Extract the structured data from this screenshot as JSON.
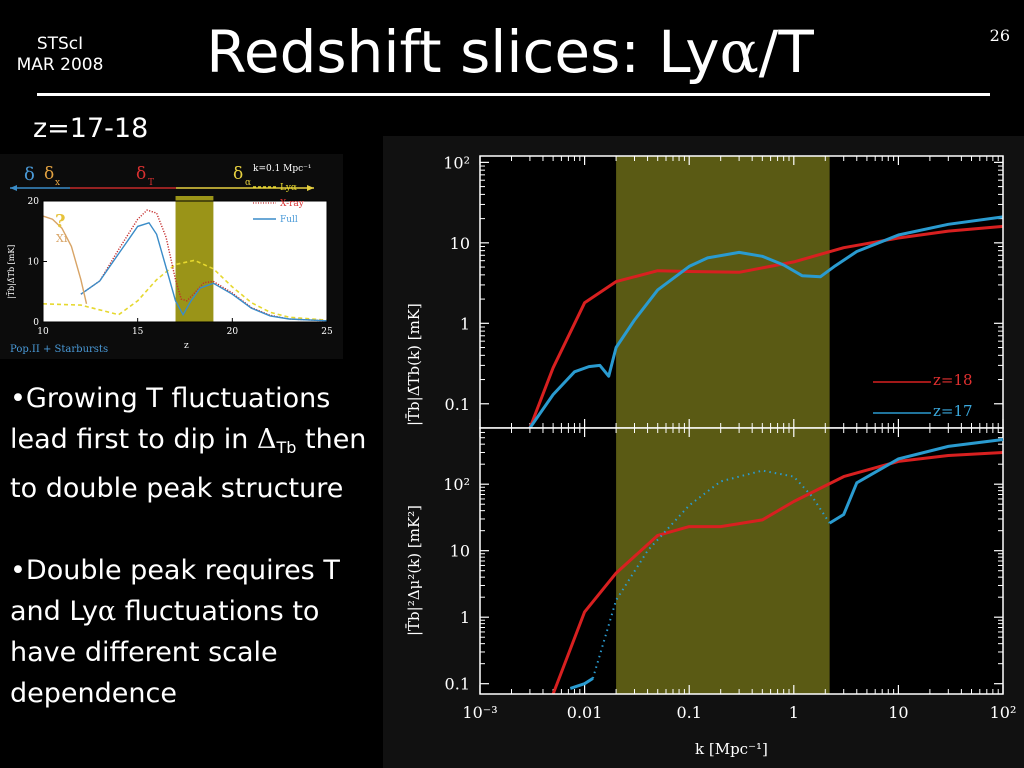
{
  "header": {
    "org_line1": "STScI",
    "org_line2": "MAR 2008",
    "title_prefix": "Redshift slices: Ly",
    "title_greek": "α",
    "title_suffix": "/T",
    "slide_number": "26"
  },
  "subtitle": "z=17-18",
  "bullets": {
    "b1_text1": "•Growing T fluctuations lead first to dip in ",
    "b1_delta": "Δ",
    "b1_sub": "Tb",
    "b1_text2": " then to double peak structure",
    "b2_text1": "•Double peak requires T and Ly",
    "b2_greek": "α",
    "b2_text2": " fluctuations to have different scale dependence"
  },
  "inset": {
    "caption": "Pop.II + Starbursts",
    "legend_k": "k=0.1 Mpc⁻¹",
    "xlabel": "z",
    "ylabel": "|T̄b|Δ̄Tb [mK]",
    "question_mark": "?",
    "xi_label": "Xi",
    "delta_labels": [
      "δ",
      "δ",
      "δ",
      "δ"
    ],
    "delta_subs": [
      "",
      "x",
      "T",
      "α"
    ]
  },
  "colors": {
    "z18": "#d82020",
    "z17": "#2a9bd0",
    "band": "#6a6a18",
    "lya": "#e6d82e",
    "xray": "#c42a2a",
    "full": "#3a8cc8",
    "xi": "#d8a466"
  },
  "chart_data": [
    {
      "type": "line",
      "ylabel": "|T̄b|Δ̄Tb(k) [mK]",
      "xscale": "log",
      "yscale": "log",
      "xlim": [
        0.001,
        100
      ],
      "ylim": [
        0.05,
        120
      ],
      "yticks": [
        "0.1",
        "1",
        "10",
        "10²"
      ],
      "shaded_band": [
        0.02,
        2.2
      ],
      "series": [
        {
          "name": "z=18",
          "x": [
            0.003,
            0.005,
            0.01,
            0.02,
            0.05,
            0.1,
            0.3,
            1,
            3,
            10,
            30,
            100
          ],
          "y": [
            0.05,
            0.28,
            1.8,
            3.3,
            4.5,
            4.4,
            4.3,
            5.8,
            8.7,
            11.5,
            14,
            16
          ]
        },
        {
          "name": "z=17",
          "x": [
            0.003,
            0.005,
            0.008,
            0.011,
            0.014,
            0.017,
            0.02,
            0.03,
            0.05,
            0.1,
            0.15,
            0.3,
            0.5,
            0.8,
            1.2,
            1.8,
            2.5,
            4,
            10,
            30,
            100
          ],
          "y": [
            0.05,
            0.13,
            0.25,
            0.29,
            0.3,
            0.22,
            0.5,
            1.1,
            2.6,
            5.1,
            6.5,
            7.6,
            6.8,
            5.3,
            3.9,
            3.8,
            5.2,
            7.8,
            12.5,
            17,
            21
          ]
        }
      ]
    },
    {
      "type": "line",
      "xlabel": "k [Mpc⁻¹]",
      "ylabel": "|T̄b|²Δμ²(k) [mK²]",
      "xscale": "log",
      "yscale": "log",
      "xlim": [
        0.001,
        100
      ],
      "ylim": [
        0.07,
        700
      ],
      "xticks": [
        "10⁻³",
        "0.01",
        "0.1",
        "1",
        "10",
        "10²"
      ],
      "yticks": [
        "0.1",
        "1",
        "10",
        "10²"
      ],
      "shaded_band": [
        0.02,
        2.2
      ],
      "series": [
        {
          "name": "z=18",
          "x": [
            0.005,
            0.01,
            0.02,
            0.05,
            0.1,
            0.2,
            0.5,
            1,
            3,
            10,
            30,
            100
          ],
          "y": [
            0.07,
            1.2,
            4.6,
            17,
            23,
            23,
            29,
            55,
            130,
            220,
            270,
            300
          ]
        },
        {
          "name": "z=17",
          "x": [
            0.0073,
            0.01,
            0.012,
            0.02,
            0.04,
            0.1,
            0.2,
            0.5,
            1,
            1.5,
            2.2,
            3,
            4,
            10,
            30,
            100
          ],
          "y": [
            0.085,
            0.1,
            0.12,
            1.8,
            10,
            48,
            110,
            160,
            130,
            65,
            26,
            35,
            105,
            240,
            370,
            470
          ]
        }
      ]
    },
    {
      "type": "line",
      "xlabel": "z",
      "xlim": [
        10,
        25
      ],
      "ylim": [
        0,
        20
      ],
      "xticks": [
        "10",
        "15",
        "20",
        "25"
      ],
      "yticks": [
        "0",
        "10",
        "20"
      ],
      "shaded_band": [
        17,
        19
      ],
      "series": [
        {
          "name": "Lyα",
          "x": [
            10,
            12,
            14,
            15,
            16,
            17,
            18,
            19,
            20,
            21,
            22,
            23,
            25
          ],
          "y": [
            3,
            2.8,
            1.2,
            3.5,
            7,
            9.5,
            10.2,
            8.8,
            5.8,
            3.2,
            1.6,
            0.8,
            0.3
          ]
        },
        {
          "name": "X-ray",
          "x": [
            12,
            13,
            14,
            15,
            15.5,
            16,
            16.5,
            17,
            17.3,
            17.6,
            18,
            18.5,
            19,
            20,
            21,
            22,
            23,
            25
          ],
          "y": [
            4.6,
            6.8,
            12,
            17,
            18.5,
            18,
            14,
            7,
            3.8,
            3.5,
            4.8,
            6.5,
            6.7,
            4.8,
            2.4,
            1.1,
            0.5,
            0.2
          ]
        },
        {
          "name": "Full",
          "x": [
            12,
            13,
            14,
            15,
            15.6,
            16,
            16.5,
            17,
            17.4,
            17.8,
            18.3,
            19,
            20,
            21,
            22,
            23,
            25
          ],
          "y": [
            4.6,
            6.8,
            11.3,
            15.8,
            16.4,
            14.5,
            9,
            3.5,
            1.2,
            3.4,
            5.6,
            6.4,
            4.6,
            2.3,
            1,
            0.5,
            0.2
          ]
        },
        {
          "name": "",
          "x": [
            10,
            10.5,
            11,
            11.5,
            12,
            12.3
          ],
          "y": [
            17.5,
            17,
            15.5,
            12.5,
            7,
            3
          ]
        }
      ]
    }
  ]
}
